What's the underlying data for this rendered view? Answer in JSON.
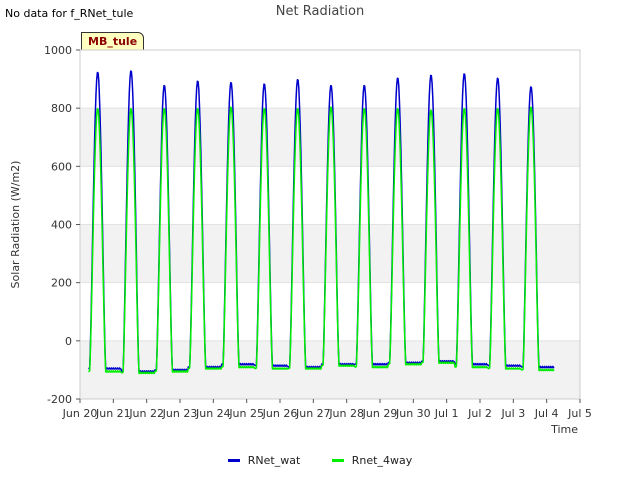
{
  "no_data_note": "No data for f_RNet_tule",
  "site_badge": "MB_tule",
  "chart_data": {
    "type": "line",
    "title": "Net Radiation",
    "xlabel": "Time",
    "ylabel": "Solar Radiation (W/m2)",
    "ylim": [
      -200,
      1000
    ],
    "yticks": [
      -200,
      0,
      200,
      400,
      600,
      800,
      1000
    ],
    "xlim": [
      0,
      15
    ],
    "x_units": "days since Jun 20 00:00",
    "xticks": [
      0,
      1,
      2,
      3,
      4,
      5,
      6,
      7,
      8,
      9,
      10,
      11,
      12,
      13,
      14,
      15
    ],
    "xtick_labels": [
      "Jun 20",
      "Jun 21",
      "Jun 22",
      "Jun 23",
      "Jun 24",
      "Jun 25",
      "Jun 26",
      "Jun 27",
      "Jun 28",
      "Jun 29",
      "Jun 30",
      "Jul 1",
      "Jul 2",
      "Jul 3",
      "Jul 4",
      "Jul 5"
    ],
    "legend_position": "bottom",
    "series": [
      {
        "name": "RNet_wat",
        "color": "#0000cc",
        "day_start": 0.25,
        "daily_peaks": [
          925,
          930,
          880,
          895,
          890,
          885,
          900,
          880,
          880,
          905,
          915,
          920,
          905,
          875
        ],
        "night_values": [
          -95,
          -105,
          -100,
          -90,
          -80,
          -85,
          -90,
          -80,
          -80,
          -75,
          -70,
          -80,
          -85,
          -90
        ]
      },
      {
        "name": "Rnet_4way",
        "color": "#00ee00",
        "day_start": 0.25,
        "daily_peaks": [
          800,
          800,
          800,
          800,
          805,
          800,
          800,
          805,
          800,
          800,
          795,
          800,
          800,
          805
        ],
        "night_values": [
          -105,
          -110,
          -105,
          -95,
          -90,
          -95,
          -95,
          -85,
          -90,
          -80,
          -75,
          -90,
          -95,
          -100
        ]
      }
    ]
  }
}
